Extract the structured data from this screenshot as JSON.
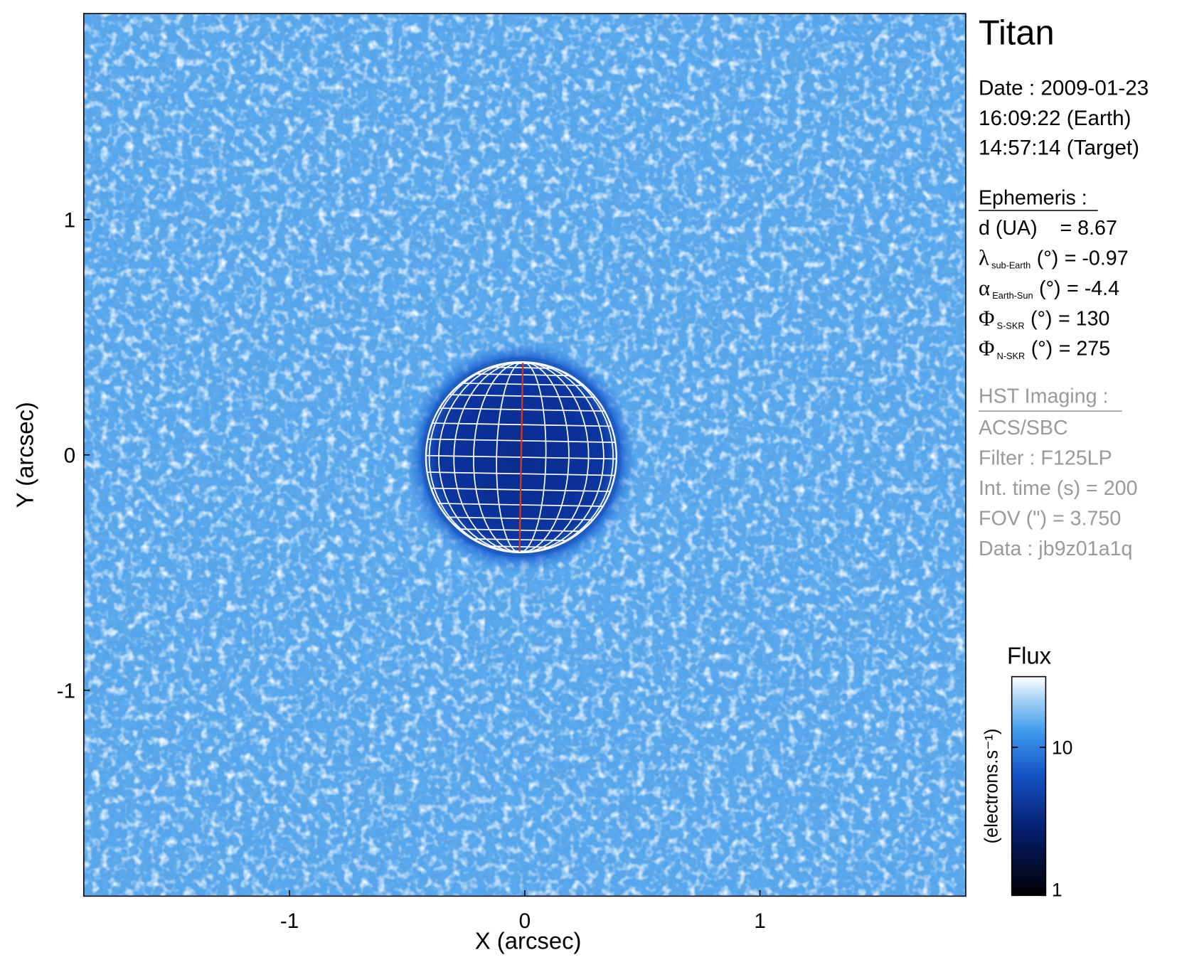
{
  "chart_data": {
    "type": "image",
    "title": "Titan",
    "xlabel": "X (arcsec)",
    "ylabel": "Y (arcsec)",
    "xlim": [
      -1.875,
      1.875
    ],
    "ylim": [
      -1.875,
      1.875
    ],
    "xticks": [
      -1,
      0,
      1
    ],
    "yticks": [
      -1,
      0,
      1
    ],
    "colorbar": {
      "title": "Flux",
      "label": "(electrons.s⁻¹)",
      "log": true,
      "lim": [
        1,
        30
      ],
      "ticks": [
        1,
        10
      ]
    }
  },
  "info": {
    "date": "Date : 2009-01-23",
    "time_earth": "16:09:22 (Earth)",
    "time_target": "14:57:14 (Target)",
    "ephemeris": {
      "heading": "Ephemeris :",
      "rows": [
        {
          "label": "d (UA)",
          "value": "= 8.67"
        },
        {
          "symbol": "λ",
          "sub": "sub-Earth",
          "unit": "(°)",
          "value": "= -0.97"
        },
        {
          "symbol": "α",
          "sub": "Earth-Sun",
          "unit": "(°)",
          "value": "= -4.4"
        },
        {
          "symbol": "Φ",
          "sub": "S-SKR",
          "unit": "(°)",
          "value": "= 130"
        },
        {
          "symbol": "Φ",
          "sub": "N-SKR",
          "unit": "(°)",
          "value": "= 275"
        }
      ]
    },
    "imaging": {
      "heading": "HST Imaging :",
      "lines": [
        "ACS/SBC",
        "Filter : F125LP",
        "Int. time (s) = 200",
        "FOV (\") = 3.750",
        "Data : jb9z01a1q"
      ]
    }
  }
}
